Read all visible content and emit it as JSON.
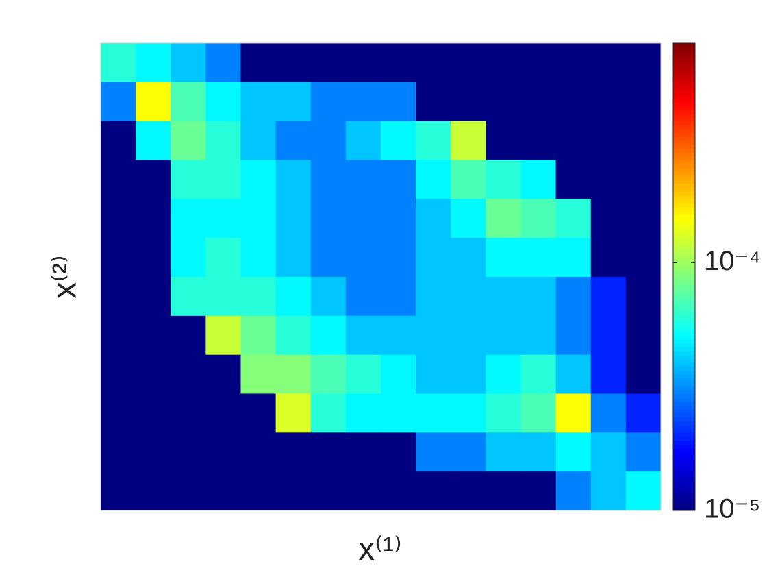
{
  "chart_data": {
    "type": "heatmap",
    "xlabel": "x⁽¹⁾",
    "ylabel": "x⁽²⁾",
    "colormap": "jet",
    "color_log_scale": true,
    "clim": [
      1e-05,
      0.00077
    ],
    "cticks": [
      {
        "value": 1e-05,
        "label": "10⁻⁵"
      },
      {
        "value": 0.0001,
        "label": "10⁻⁴"
      }
    ],
    "z": [
      [
        6e-05,
        5e-05,
        4e-05,
        3e-05,
        1e-05,
        1e-05,
        1e-05,
        1e-05,
        1e-05,
        1e-05,
        1e-05,
        1e-05,
        1e-05,
        1e-05,
        1e-05,
        1e-05
      ],
      [
        3e-05,
        0.00015,
        7e-05,
        5e-05,
        4e-05,
        4e-05,
        3e-05,
        3e-05,
        3e-05,
        1e-05,
        1e-05,
        1e-05,
        1e-05,
        1e-05,
        1e-05,
        1e-05
      ],
      [
        1e-05,
        5e-05,
        8e-05,
        6e-05,
        4e-05,
        3e-05,
        3e-05,
        4e-05,
        5e-05,
        6e-05,
        0.00012,
        1e-05,
        1e-05,
        1e-05,
        1e-05,
        1e-05
      ],
      [
        1e-05,
        1e-05,
        6e-05,
        6e-05,
        5e-05,
        4e-05,
        3e-05,
        3e-05,
        3e-05,
        5e-05,
        7e-05,
        6e-05,
        5e-05,
        1e-05,
        1e-05,
        1e-05
      ],
      [
        1e-05,
        1e-05,
        5e-05,
        5e-05,
        5e-05,
        4e-05,
        3e-05,
        3e-05,
        3e-05,
        4e-05,
        5e-05,
        8e-05,
        7e-05,
        6e-05,
        1e-05,
        1e-05
      ],
      [
        1e-05,
        1e-05,
        5e-05,
        6e-05,
        5e-05,
        4e-05,
        3e-05,
        3e-05,
        3e-05,
        4e-05,
        4e-05,
        5e-05,
        5e-05,
        5e-05,
        1e-05,
        1e-05
      ],
      [
        1e-05,
        1e-05,
        6e-05,
        6e-05,
        6e-05,
        5e-05,
        4e-05,
        3e-05,
        3e-05,
        4e-05,
        4e-05,
        4e-05,
        4e-05,
        3e-05,
        2e-05,
        1e-05
      ],
      [
        1e-05,
        1e-05,
        1e-05,
        0.00012,
        8e-05,
        6e-05,
        5e-05,
        4e-05,
        4e-05,
        4e-05,
        4e-05,
        4e-05,
        4e-05,
        3e-05,
        2e-05,
        1e-05
      ],
      [
        1e-05,
        1e-05,
        1e-05,
        1e-05,
        9e-05,
        9e-05,
        7e-05,
        6e-05,
        5e-05,
        4e-05,
        4e-05,
        5e-05,
        6e-05,
        4e-05,
        2e-05,
        1e-05
      ],
      [
        1e-05,
        1e-05,
        1e-05,
        1e-05,
        1e-05,
        0.00013,
        6e-05,
        5e-05,
        5e-05,
        5e-05,
        5e-05,
        6e-05,
        7e-05,
        0.00015,
        3e-05,
        2e-05
      ],
      [
        1e-05,
        1e-05,
        1e-05,
        1e-05,
        1e-05,
        1e-05,
        1e-05,
        1e-05,
        1e-05,
        3e-05,
        3e-05,
        4e-05,
        4e-05,
        5e-05,
        4e-05,
        3e-05
      ],
      [
        1e-05,
        1e-05,
        1e-05,
        1e-05,
        1e-05,
        1e-05,
        1e-05,
        1e-05,
        1e-05,
        1e-05,
        1e-05,
        1e-05,
        1e-05,
        3e-05,
        4e-05,
        5e-05
      ]
    ]
  }
}
